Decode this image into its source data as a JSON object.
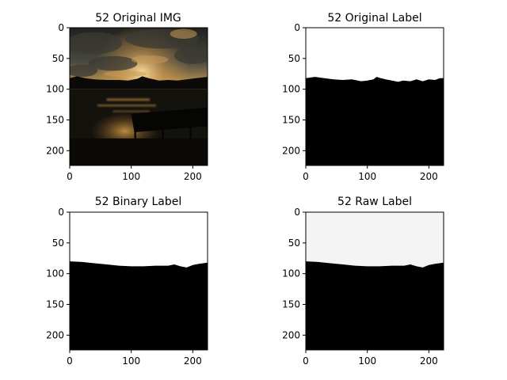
{
  "figure": {
    "background": "#ffffff"
  },
  "chart_data": [
    {
      "type": "image",
      "title": "52 Original IMG",
      "content": "sunset photo: dark cloudy sky with golden light over lake and tree line, wooden dock lower right",
      "xticks": [
        0,
        100,
        200
      ],
      "yticks": [
        0,
        50,
        100,
        150,
        200
      ],
      "xlim": [
        0,
        224
      ],
      "ylim": [
        224,
        0
      ],
      "colors": {
        "sky_dark": "#2c2d28",
        "glow": "#f4c46a",
        "water": "#16140f",
        "trees": "#0a0a08"
      }
    },
    {
      "type": "image",
      "title": "52 Original Label",
      "content": "binary mask: white sky above, black below; jagged horizon",
      "xticks": [
        0,
        100,
        200
      ],
      "yticks": [
        0,
        50,
        100,
        150,
        200
      ],
      "xlim": [
        0,
        224
      ],
      "ylim": [
        224,
        0
      ],
      "horizon": [
        [
          0,
          82
        ],
        [
          15,
          80
        ],
        [
          30,
          82
        ],
        [
          45,
          84
        ],
        [
          60,
          85
        ],
        [
          75,
          84
        ],
        [
          90,
          87
        ],
        [
          100,
          86
        ],
        [
          110,
          84
        ],
        [
          115,
          80
        ],
        [
          122,
          82
        ],
        [
          130,
          84
        ],
        [
          140,
          86
        ],
        [
          150,
          88
        ],
        [
          158,
          86
        ],
        [
          170,
          87
        ],
        [
          180,
          84
        ],
        [
          190,
          87
        ],
        [
          200,
          84
        ],
        [
          210,
          85
        ],
        [
          218,
          82
        ],
        [
          224,
          82
        ]
      ],
      "colors": {
        "top": "#ffffff",
        "bottom": "#000000"
      }
    },
    {
      "type": "image",
      "title": "52 Binary Label",
      "content": "binary mask: white sky above, black below; smooth horizon",
      "xticks": [
        0,
        100,
        200
      ],
      "yticks": [
        0,
        50,
        100,
        150,
        200
      ],
      "xlim": [
        0,
        224
      ],
      "ylim": [
        224,
        0
      ],
      "horizon": [
        [
          0,
          80
        ],
        [
          20,
          81
        ],
        [
          40,
          83
        ],
        [
          60,
          85
        ],
        [
          80,
          87
        ],
        [
          100,
          88
        ],
        [
          120,
          88
        ],
        [
          140,
          87
        ],
        [
          160,
          87
        ],
        [
          170,
          85
        ],
        [
          180,
          88
        ],
        [
          190,
          90
        ],
        [
          200,
          86
        ],
        [
          210,
          84
        ],
        [
          224,
          82
        ]
      ],
      "colors": {
        "top": "#ffffff",
        "bottom": "#000000"
      }
    },
    {
      "type": "image",
      "title": "52 Raw Label",
      "content": "soft grayscale mask: near-white sky above, black below; smooth horizon",
      "xticks": [
        0,
        100,
        200
      ],
      "yticks": [
        0,
        50,
        100,
        150,
        200
      ],
      "xlim": [
        0,
        224
      ],
      "ylim": [
        224,
        0
      ],
      "horizon": [
        [
          0,
          80
        ],
        [
          20,
          81
        ],
        [
          40,
          83
        ],
        [
          60,
          85
        ],
        [
          80,
          87
        ],
        [
          100,
          88
        ],
        [
          120,
          88
        ],
        [
          140,
          87
        ],
        [
          160,
          87
        ],
        [
          170,
          85
        ],
        [
          180,
          88
        ],
        [
          190,
          90
        ],
        [
          200,
          86
        ],
        [
          210,
          84
        ],
        [
          224,
          82
        ]
      ],
      "colors": {
        "top": "#f4f4f4",
        "bottom": "#000000"
      }
    }
  ]
}
